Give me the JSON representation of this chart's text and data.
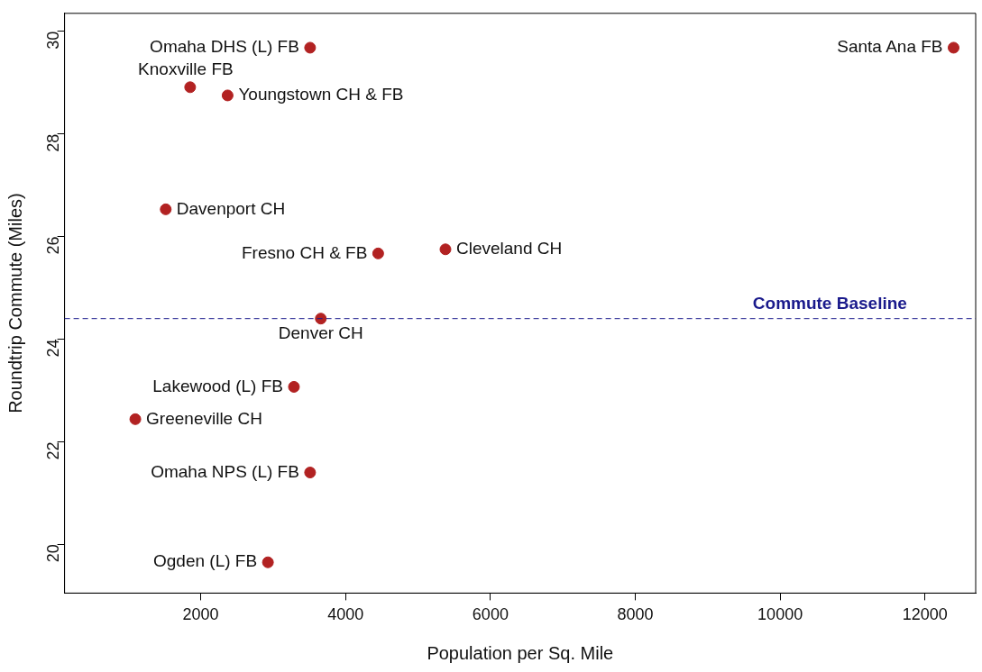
{
  "chart_data": {
    "type": "scatter",
    "xlabel": "Population per Sq. Mile",
    "ylabel": "Roundtrip Commute (Miles)",
    "x": [
      3510,
      12395,
      1854,
      2371,
      1517,
      4450,
      5379,
      3658,
      3287,
      1097,
      3510,
      2928
    ],
    "values": [
      29.68,
      29.68,
      28.91,
      28.75,
      26.53,
      25.67,
      25.75,
      24.4,
      23.07,
      22.44,
      21.4,
      19.65
    ],
    "color": "#b22222",
    "marker": "circle",
    "xlim": [
      120,
      12700
    ],
    "xticks": [
      2000,
      4000,
      6000,
      8000,
      10000,
      12000
    ],
    "ylim": [
      19.05,
      30.35
    ],
    "yticks": [
      20,
      22,
      24,
      26,
      28,
      30
    ],
    "grid": false,
    "legend": false,
    "ref_lines": [
      {
        "axis": "y",
        "value": 24.4,
        "label": "Commute Baseline",
        "color": "#1a1a8c",
        "line_style": "dashed"
      }
    ],
    "annotations": [
      {
        "text": "Omaha DHS (L) FB",
        "x": 3510,
        "y": 29.68
      },
      {
        "text": "Santa Ana FB",
        "x": 12395,
        "y": 29.68
      },
      {
        "text": "Knoxville FB",
        "x": 1854,
        "y": 28.91
      },
      {
        "text": "Youngstown CH & FB",
        "x": 2371,
        "y": 28.75
      },
      {
        "text": "Davenport CH",
        "x": 1517,
        "y": 26.53
      },
      {
        "text": "Fresno CH & FB",
        "x": 4450,
        "y": 25.67
      },
      {
        "text": "Cleveland CH",
        "x": 5379,
        "y": 25.75
      },
      {
        "text": "Denver CH",
        "x": 3658,
        "y": 24.4
      },
      {
        "text": "Lakewood (L) FB",
        "x": 3287,
        "y": 23.07
      },
      {
        "text": "Greeneville CH",
        "x": 1097,
        "y": 22.44
      },
      {
        "text": "Omaha NPS (L) FB",
        "x": 3510,
        "y": 21.4
      },
      {
        "text": "Ogden (L) FB",
        "x": 2928,
        "y": 19.65
      }
    ]
  }
}
